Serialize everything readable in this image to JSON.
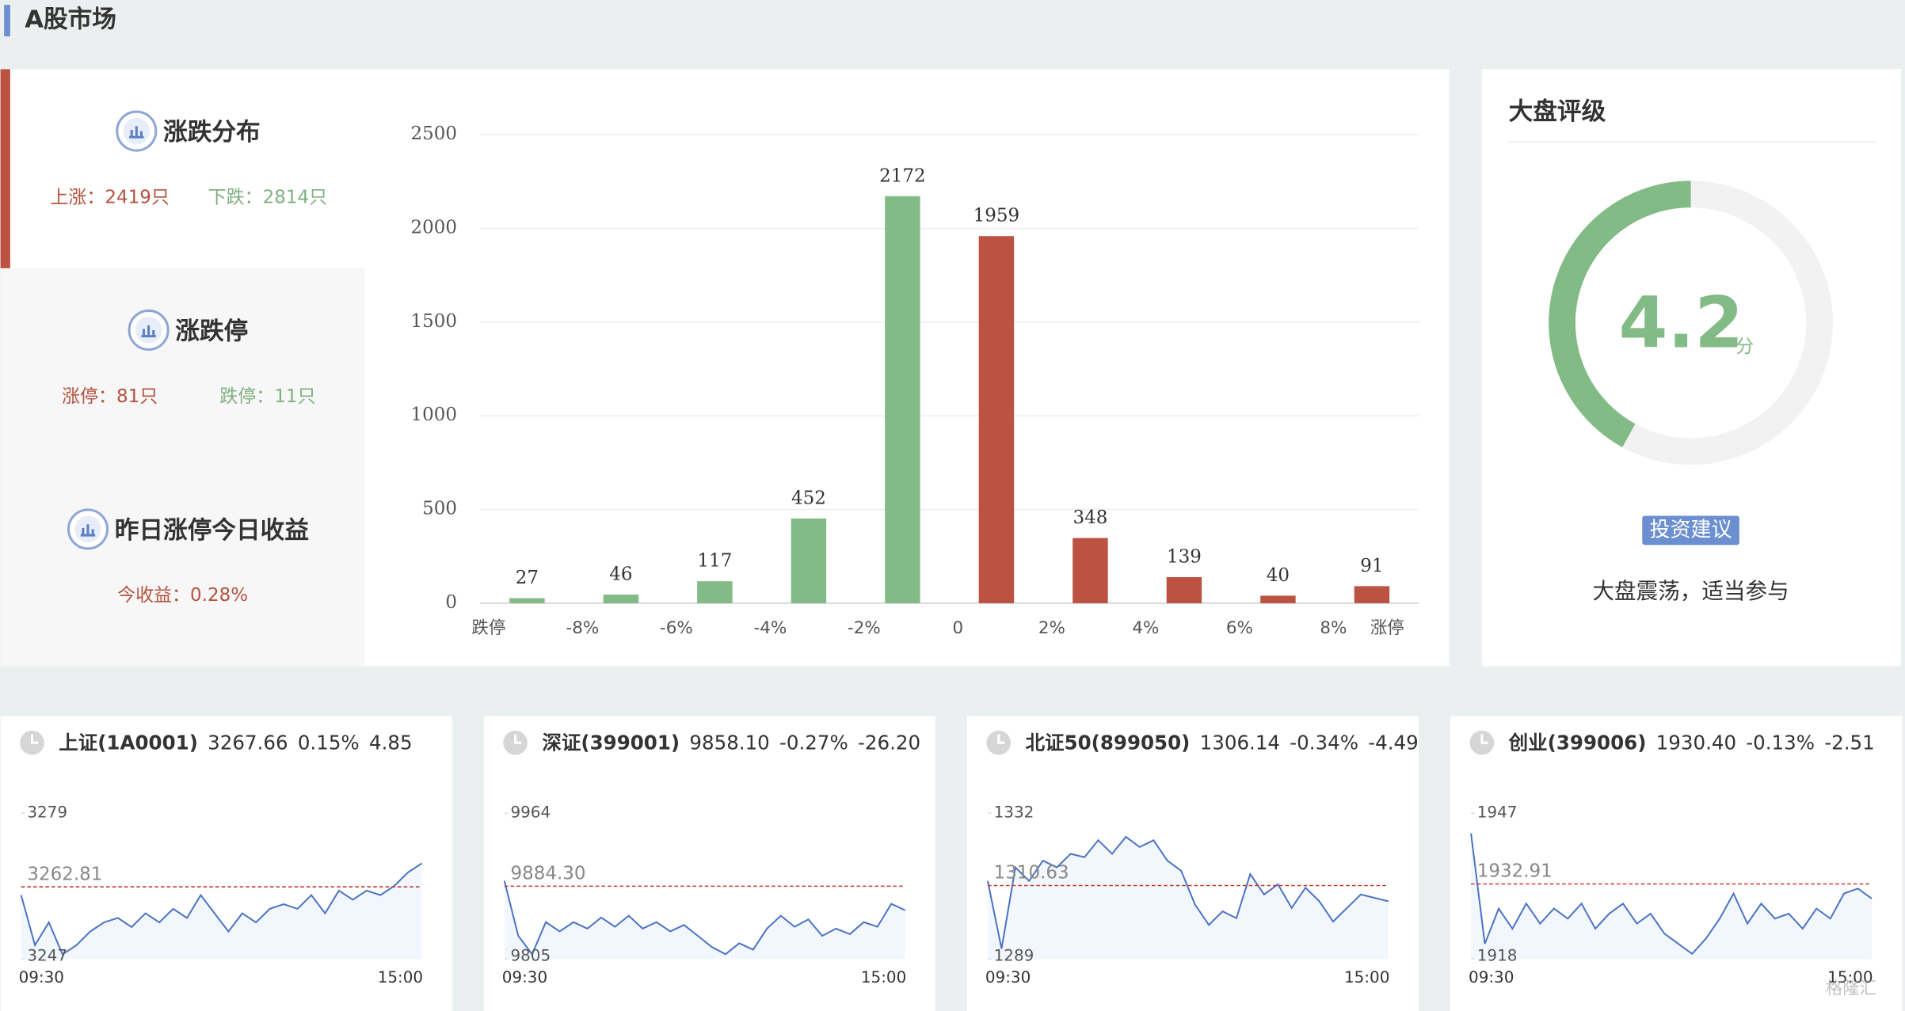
{
  "header": {
    "title": "A股市场"
  },
  "summary": [
    {
      "title": "涨跌分布",
      "items": [
        "上涨：2419只",
        "下跌：2814只"
      ]
    },
    {
      "title": "涨跌停",
      "items": [
        "涨停：81只",
        "跌停：11只"
      ]
    },
    {
      "title": "昨日涨停今日收益",
      "items": [
        "今收益：0.28%"
      ]
    }
  ],
  "rating": {
    "title": "大盘评级",
    "score": 4.2,
    "unit": "分",
    "range": [
      0,
      10
    ],
    "color": "#82bb85",
    "advice_label": "投资建议",
    "advice": "大盘震荡，适当参与"
  },
  "watermark": "格隆汇",
  "chart_data": [
    {
      "type": "bar",
      "x_labels": [
        "跌停",
        "-8%",
        "-6%",
        "-4%",
        "-2%",
        "0",
        "2%",
        "4%",
        "6%",
        "8%",
        "涨停"
      ],
      "values": [
        27,
        46,
        117,
        452,
        2172,
        1959,
        348,
        139,
        40,
        91
      ],
      "colors": [
        "#82bb85",
        "#82bb85",
        "#82bb85",
        "#82bb85",
        "#82bb85",
        "#bb5242",
        "#bb5242",
        "#bb5242",
        "#bb5242",
        "#bb5242"
      ],
      "ylim": [
        0,
        2500
      ],
      "yticks": [
        0,
        500,
        1000,
        1500,
        2000,
        2500
      ],
      "grid": true
    },
    {
      "type": "line",
      "name": "上证(1A0001)",
      "price": "3267.66",
      "change": "0.15%",
      "change_amount": "4.85",
      "ylim": [
        3247,
        3279
      ],
      "yticks": [
        3247,
        3279
      ],
      "reference": 3262.81,
      "x_labels": [
        "09:30",
        "15:00"
      ],
      "color": "#4a72c4",
      "reference_color": "#c23b2b",
      "values": [
        3261,
        3250,
        3255,
        3248,
        3250,
        3253,
        3255,
        3256,
        3254,
        3257,
        3255,
        3258,
        3256,
        3261,
        3257,
        3253,
        3257,
        3255,
        3258,
        3259,
        3258,
        3261,
        3257,
        3262,
        3260,
        3262,
        3261,
        3263,
        3266,
        3268
      ]
    },
    {
      "type": "line",
      "name": "深证(399001)",
      "price": "9858.10",
      "change": "-0.27%",
      "change_amount": "-26.20",
      "ylim": [
        9805,
        9964
      ],
      "yticks": [
        9805,
        9964
      ],
      "reference": {
        "value": 9884.3,
        "label": "9884.30"
      },
      "x_labels": [
        "09:30",
        "15:00"
      ],
      "color": "#4a72c4",
      "reference_color": "#c23b2b",
      "values": [
        9890,
        9830,
        9810,
        9845,
        9835,
        9845,
        9838,
        9850,
        9840,
        9852,
        9838,
        9845,
        9835,
        9842,
        9830,
        9818,
        9810,
        9822,
        9815,
        9838,
        9852,
        9840,
        9848,
        9830,
        9838,
        9832,
        9845,
        9840,
        9865,
        9858
      ]
    },
    {
      "type": "line",
      "name": "北证50(899050)",
      "price": "1306.14",
      "change": "-0.34%",
      "change_amount": "-4.49",
      "ylim": [
        1289,
        1332
      ],
      "yticks": [
        1289,
        1332
      ],
      "reference": 1310.63,
      "x_labels": [
        "09:30",
        "15:00"
      ],
      "color": "#4a72c4",
      "reference_color": "#c23b2b",
      "values": [
        1312,
        1292,
        1316,
        1312,
        1318,
        1316,
        1320,
        1319,
        1324,
        1320,
        1325,
        1322,
        1324,
        1318,
        1315,
        1305,
        1299,
        1303,
        1301,
        1314,
        1308,
        1311,
        1304,
        1310,
        1306,
        1300,
        1304,
        1308,
        1307,
        1306
      ]
    },
    {
      "type": "line",
      "name": "创业(399006)",
      "price": "1930.40",
      "change": "-0.13%",
      "change_amount": "-2.51",
      "ylim": [
        1918,
        1947
      ],
      "yticks": [
        1918,
        1947
      ],
      "reference": 1932.91,
      "x_labels": [
        "09:30",
        "15:00"
      ],
      "color": "#4a72c4",
      "reference_color": "#c23b2b",
      "values": [
        1943,
        1921,
        1928,
        1924,
        1929,
        1925,
        1928,
        1926,
        1929,
        1924,
        1927,
        1929,
        1925,
        1927,
        1923,
        1921,
        1919,
        1922,
        1926,
        1931,
        1925,
        1929,
        1926,
        1927,
        1924,
        1928,
        1926,
        1931,
        1932,
        1930
      ]
    }
  ]
}
